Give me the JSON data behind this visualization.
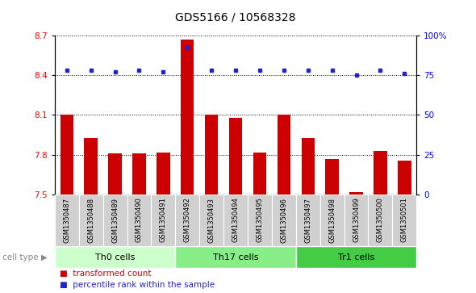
{
  "title": "GDS5166 / 10568328",
  "samples": [
    "GSM1350487",
    "GSM1350488",
    "GSM1350489",
    "GSM1350490",
    "GSM1350491",
    "GSM1350492",
    "GSM1350493",
    "GSM1350494",
    "GSM1350495",
    "GSM1350496",
    "GSM1350497",
    "GSM1350498",
    "GSM1350499",
    "GSM1350500",
    "GSM1350501"
  ],
  "transformed_count": [
    8.1,
    7.93,
    7.81,
    7.81,
    7.82,
    8.67,
    8.1,
    8.08,
    7.82,
    8.1,
    7.93,
    7.77,
    7.52,
    7.83,
    7.76
  ],
  "percentile_rank": [
    78,
    78,
    77,
    78,
    77,
    92,
    78,
    78,
    78,
    78,
    78,
    78,
    75,
    78,
    76
  ],
  "ylim_left": [
    7.5,
    8.7
  ],
  "ylim_right": [
    0,
    100
  ],
  "yticks_left": [
    7.5,
    7.8,
    8.1,
    8.4,
    8.7
  ],
  "yticks_right": [
    0,
    25,
    50,
    75,
    100
  ],
  "bar_color": "#cc0000",
  "dot_color": "#2222cc",
  "cell_types": [
    {
      "label": "Th0 cells",
      "start": 0,
      "end": 5,
      "color": "#ccffcc"
    },
    {
      "label": "Th17 cells",
      "start": 5,
      "end": 10,
      "color": "#88ee88"
    },
    {
      "label": "Tr1 cells",
      "start": 10,
      "end": 15,
      "color": "#44cc44"
    }
  ],
  "cell_type_label": "cell type",
  "legend_transformed": "transformed count",
  "legend_percentile": "percentile rank within the sample",
  "plot_bg_color": "#ffffff",
  "tick_bg_color": "#d4d4d4",
  "baseline": 7.5
}
